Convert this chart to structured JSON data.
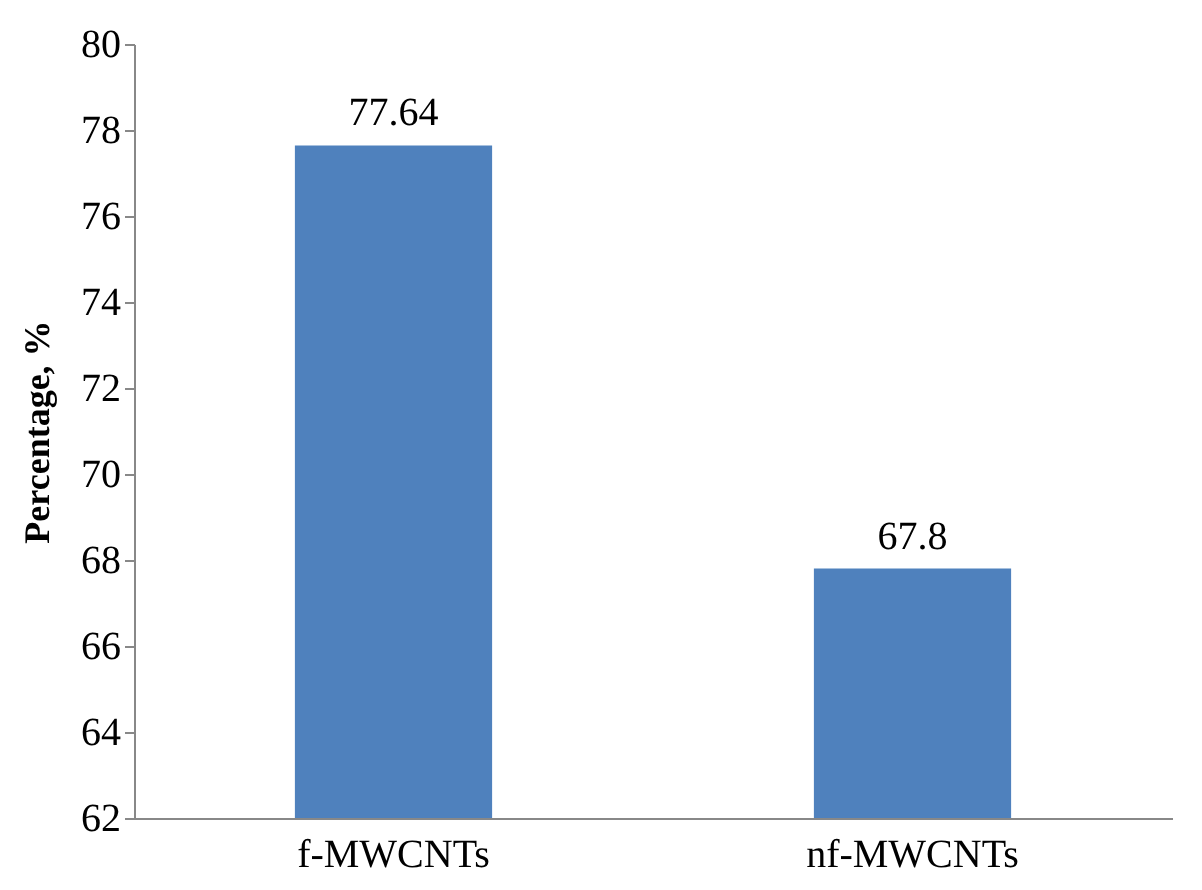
{
  "chart_data": {
    "type": "bar",
    "ylabel": "Percentage, %",
    "categories": [
      "f-MWCNTs",
      "nf-MWCNTs"
    ],
    "values": [
      77.64,
      67.8
    ],
    "color": "#4f81bd",
    "ylim": [
      62,
      80
    ],
    "yticks": [
      62,
      64,
      66,
      68,
      70,
      72,
      74,
      76,
      78,
      80
    ],
    "data_labels": true,
    "grid": false
  }
}
